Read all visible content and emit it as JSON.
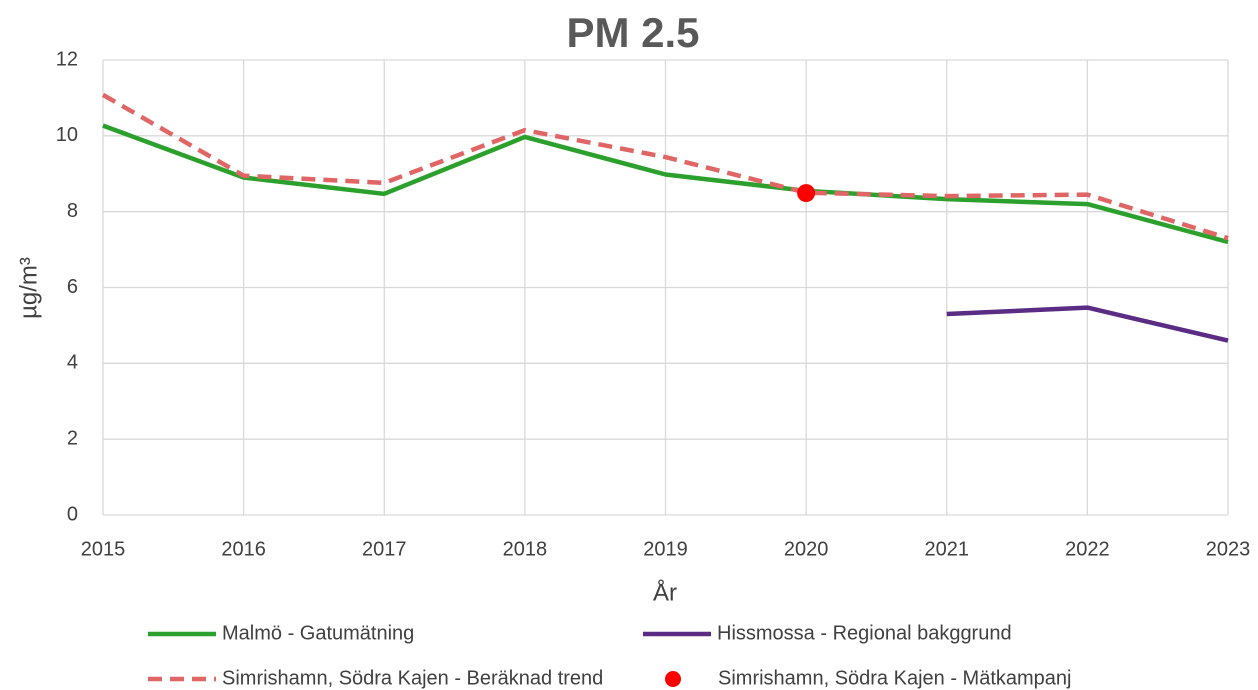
{
  "chart_data": {
    "type": "line",
    "title": "PM 2.5",
    "xlabel": "År",
    "ylabel": "µg/m³",
    "x": [
      2015,
      2016,
      2017,
      2018,
      2019,
      2020,
      2021,
      2022,
      2023
    ],
    "xlim": [
      2015,
      2023
    ],
    "xticks": [
      2015,
      2016,
      2017,
      2018,
      2019,
      2020,
      2021,
      2022,
      2023
    ],
    "ylim": [
      0,
      12
    ],
    "yticks": [
      0,
      2,
      4,
      6,
      8,
      10,
      12
    ],
    "grid": true,
    "legend": "bottom",
    "series": [
      {
        "name": "Malmö - Gatumätning",
        "color": "#2ca02c",
        "style": "solid",
        "values": [
          10.27,
          8.9,
          8.47,
          9.97,
          8.98,
          8.55,
          8.33,
          8.2,
          7.2
        ]
      },
      {
        "name": "Hissmossa - Regional bakggrund",
        "color": "#5b2c83",
        "style": "solid",
        "values": [
          null,
          null,
          null,
          null,
          null,
          null,
          5.3,
          5.47,
          4.6
        ]
      },
      {
        "name": "Simrishamn, Södra Kajen - Beräknad trend",
        "color": "#e06666",
        "style": "dashed",
        "values": [
          11.08,
          8.95,
          8.76,
          10.15,
          9.44,
          8.5,
          8.41,
          8.45,
          7.3
        ]
      },
      {
        "name": "Simrishamn, Södra Kajen - Mätkampanj",
        "color": "#ff0000",
        "style": "marker",
        "values": [
          null,
          null,
          null,
          null,
          null,
          8.49,
          null,
          null,
          null
        ]
      }
    ]
  }
}
